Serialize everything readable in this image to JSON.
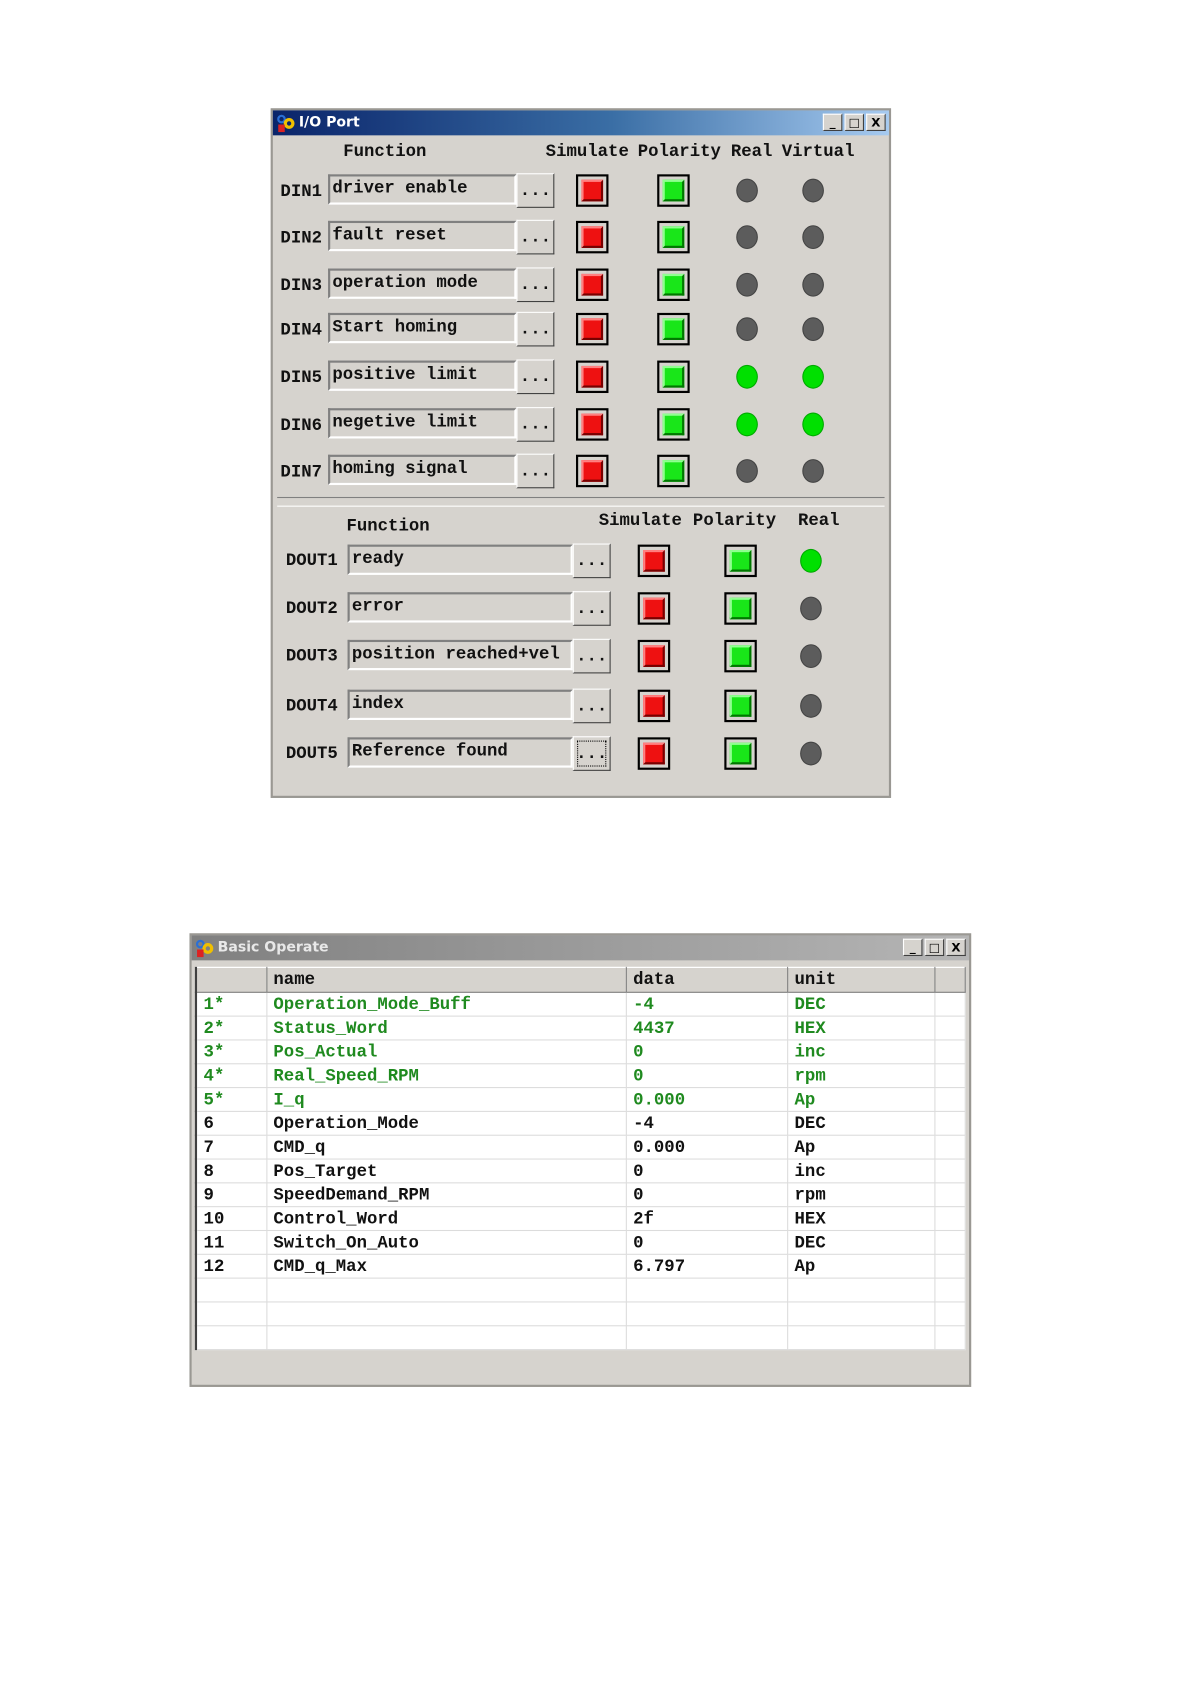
{
  "io_port": {
    "title": "I/O Port",
    "window_buttons": {
      "minimize": "_",
      "maximize": "□",
      "close": "X"
    },
    "din_headers": {
      "function": "Function",
      "simulate": "Simulate",
      "polarity": "Polarity",
      "real": "Real",
      "virtual": "Virtual"
    },
    "din": [
      {
        "label": "DIN1",
        "function": "driver enable",
        "button": "...",
        "simulate": "red",
        "polarity": "green",
        "real": "off",
        "virtual": "off"
      },
      {
        "label": "DIN2",
        "function": "fault reset",
        "button": "...",
        "simulate": "red",
        "polarity": "green",
        "real": "off",
        "virtual": "off"
      },
      {
        "label": "DIN3",
        "function": "operation mode",
        "button": "...",
        "simulate": "red",
        "polarity": "green",
        "real": "off",
        "virtual": "off"
      },
      {
        "label": "DIN4",
        "function": "Start homing",
        "button": "...",
        "simulate": "red",
        "polarity": "green",
        "real": "off",
        "virtual": "off"
      },
      {
        "label": "DIN5",
        "function": "positive limit",
        "button": "...",
        "simulate": "red",
        "polarity": "green",
        "real": "on",
        "virtual": "on"
      },
      {
        "label": "DIN6",
        "function": "negetive limit",
        "button": "...",
        "simulate": "red",
        "polarity": "green",
        "real": "on",
        "virtual": "on"
      },
      {
        "label": "DIN7",
        "function": "homing signal",
        "button": "...",
        "simulate": "red",
        "polarity": "green",
        "real": "off",
        "virtual": "off"
      }
    ],
    "dout_headers": {
      "function": "Function",
      "simulate": "Simulate",
      "polarity": "Polarity",
      "real": "Real"
    },
    "dout": [
      {
        "label": "DOUT1",
        "function": "ready",
        "button": "...",
        "simulate": "red",
        "polarity": "green",
        "real": "on"
      },
      {
        "label": "DOUT2",
        "function": "error",
        "button": "...",
        "simulate": "red",
        "polarity": "green",
        "real": "off"
      },
      {
        "label": "DOUT3",
        "function": "position reached+vel",
        "button": "...",
        "simulate": "red",
        "polarity": "green",
        "real": "off"
      },
      {
        "label": "DOUT4",
        "function": "index",
        "button": "...",
        "simulate": "red",
        "polarity": "green",
        "real": "off"
      },
      {
        "label": "DOUT5",
        "function": "Reference found",
        "button": "...",
        "simulate": "red",
        "polarity": "green",
        "real": "off"
      }
    ]
  },
  "basic_operate": {
    "title": "Basic Operate",
    "window_buttons": {
      "minimize": "_",
      "maximize": "□",
      "close": "X"
    },
    "columns": [
      "",
      "name",
      "data",
      "unit",
      ""
    ],
    "rows": [
      {
        "index": "1*",
        "name": "Operation_Mode_Buff",
        "data": "-4",
        "unit": "DEC",
        "highlight": true
      },
      {
        "index": "2*",
        "name": "Status_Word",
        "data": "4437",
        "unit": "HEX",
        "highlight": true
      },
      {
        "index": "3*",
        "name": "Pos_Actual",
        "data": "0",
        "unit": "inc",
        "highlight": true
      },
      {
        "index": "4*",
        "name": "Real_Speed_RPM",
        "data": "0",
        "unit": "rpm",
        "highlight": true
      },
      {
        "index": "5*",
        "name": "I_q",
        "data": "0.000",
        "unit": "Ap",
        "highlight": true
      },
      {
        "index": "6",
        "name": "Operation_Mode",
        "data": "-4",
        "unit": "DEC",
        "highlight": false
      },
      {
        "index": "7",
        "name": "CMD_q",
        "data": "0.000",
        "unit": "Ap",
        "highlight": false
      },
      {
        "index": "8",
        "name": "Pos_Target",
        "data": "0",
        "unit": "inc",
        "highlight": false
      },
      {
        "index": "9",
        "name": "SpeedDemand_RPM",
        "data": "0",
        "unit": "rpm",
        "highlight": false
      },
      {
        "index": "10",
        "name": "Control_Word",
        "data": "2f",
        "unit": "HEX",
        "highlight": false
      },
      {
        "index": "11",
        "name": "Switch_On_Auto",
        "data": "0",
        "unit": "DEC",
        "highlight": false
      },
      {
        "index": "12",
        "name": "CMD_q_Max",
        "data": "6.797",
        "unit": "Ap",
        "highlight": false
      }
    ],
    "empty_rows": 3
  },
  "colors": {
    "highlight_text": "#1f8a1f",
    "led_on": "#00e000",
    "led_off": "#5c5c5c",
    "simulate": "#ee1111",
    "polarity": "#19e619"
  }
}
